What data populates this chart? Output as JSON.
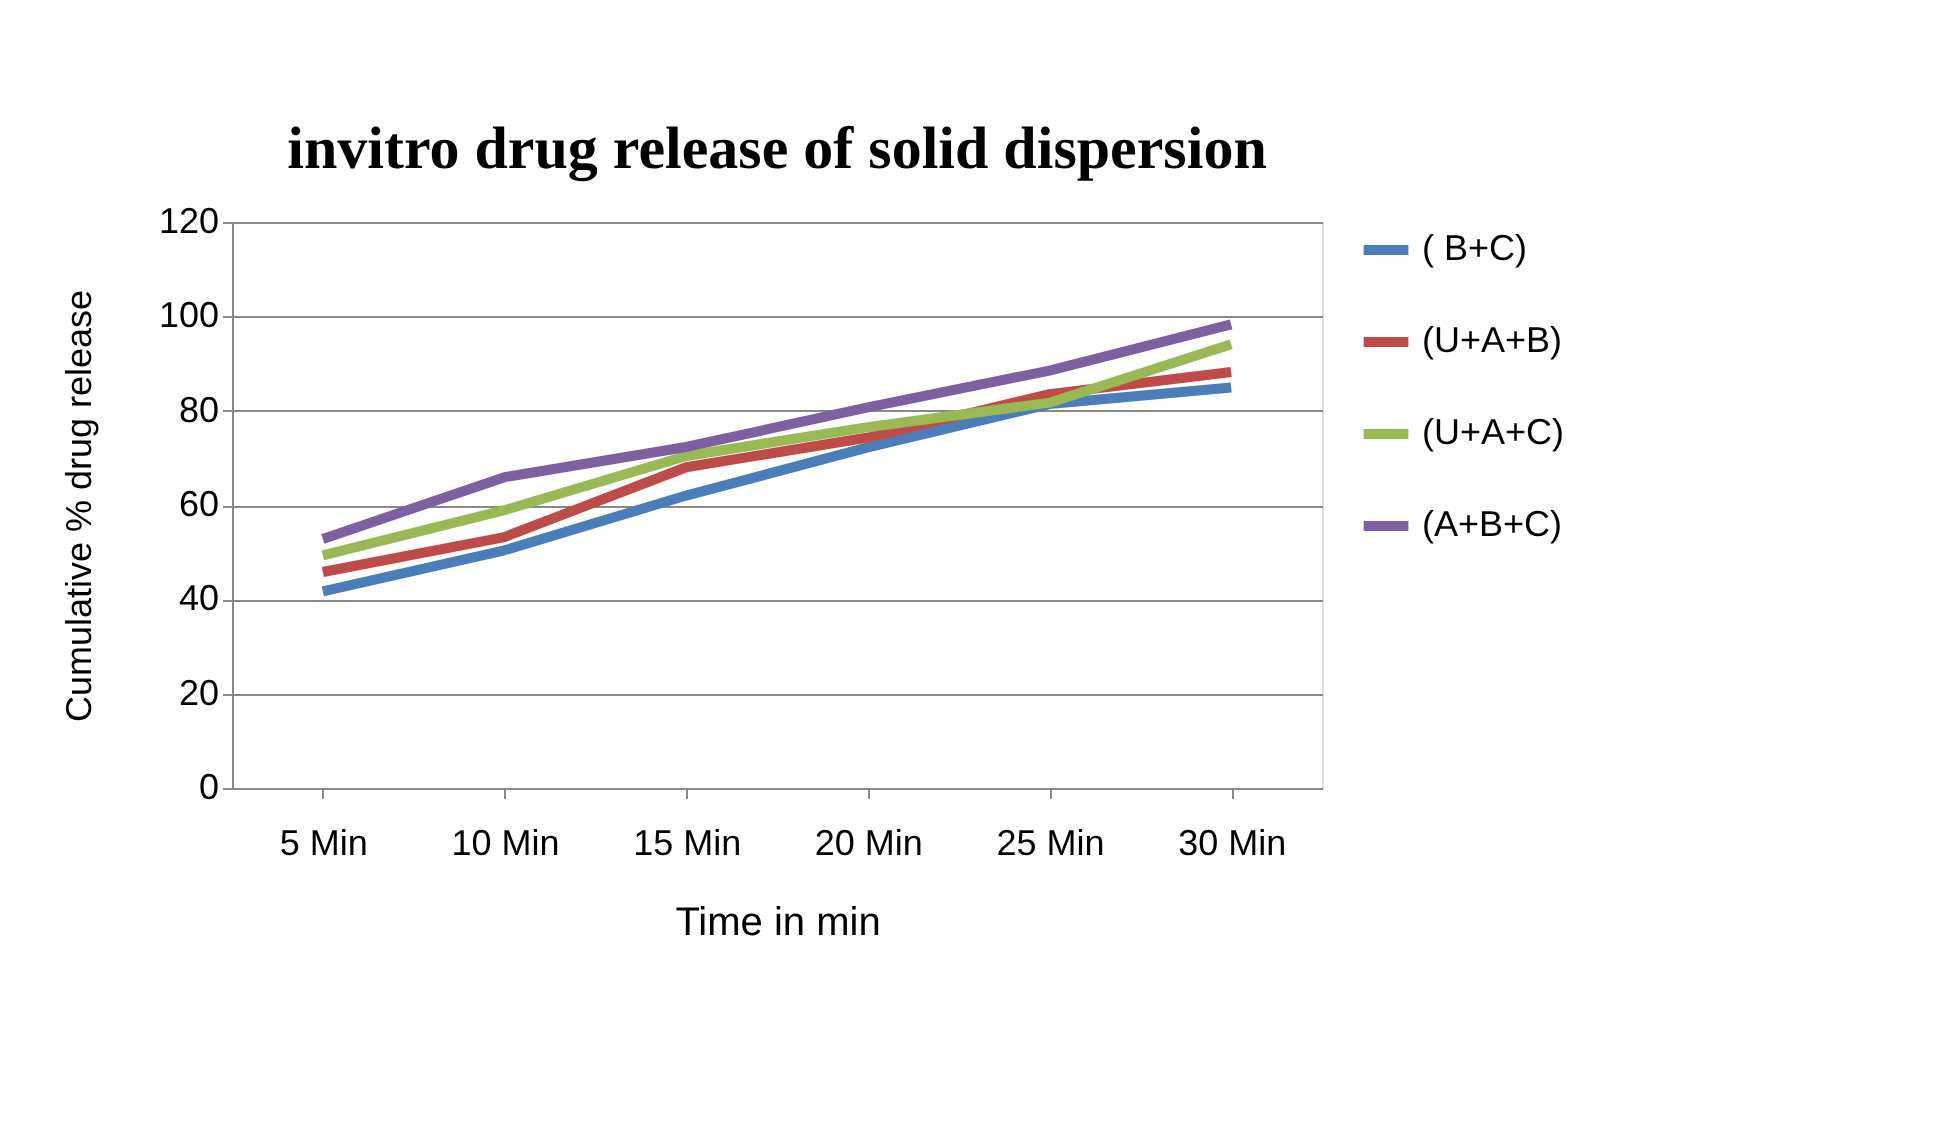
{
  "chart_data": {
    "type": "line",
    "title": "invitro drug release of solid dispersion",
    "xlabel": "Time in min",
    "ylabel": "Cumulative % drug release",
    "categories": [
      "5 Min",
      "10 Min",
      "15 Min",
      "20 Min",
      "25 Min",
      "30 Min"
    ],
    "series": [
      {
        "name": "( B+C)",
        "color": "#4a7ebb",
        "values": [
          41.7,
          50.4,
          62,
          72.2,
          81.4,
          84.9
        ]
      },
      {
        "name": "(U+A+B)",
        "color": "#be4b48",
        "values": [
          45.8,
          53.2,
          68,
          74.3,
          83.5,
          88.2
        ]
      },
      {
        "name": "(U+A+C)",
        "color": "#98b954",
        "values": [
          49.3,
          58.9,
          70.4,
          76.5,
          81.7,
          94.1
        ]
      },
      {
        "name": "(A+B+C)",
        "color": "#7d60a0",
        "values": [
          52.8,
          65.9,
          72.3,
          80.7,
          88.5,
          98.3
        ]
      }
    ],
    "ylim": [
      0,
      120
    ],
    "yticks": [
      0,
      20,
      40,
      60,
      80,
      100,
      120
    ],
    "grid": "y",
    "legend": "right",
    "marker": "none",
    "line_style": "solid"
  }
}
